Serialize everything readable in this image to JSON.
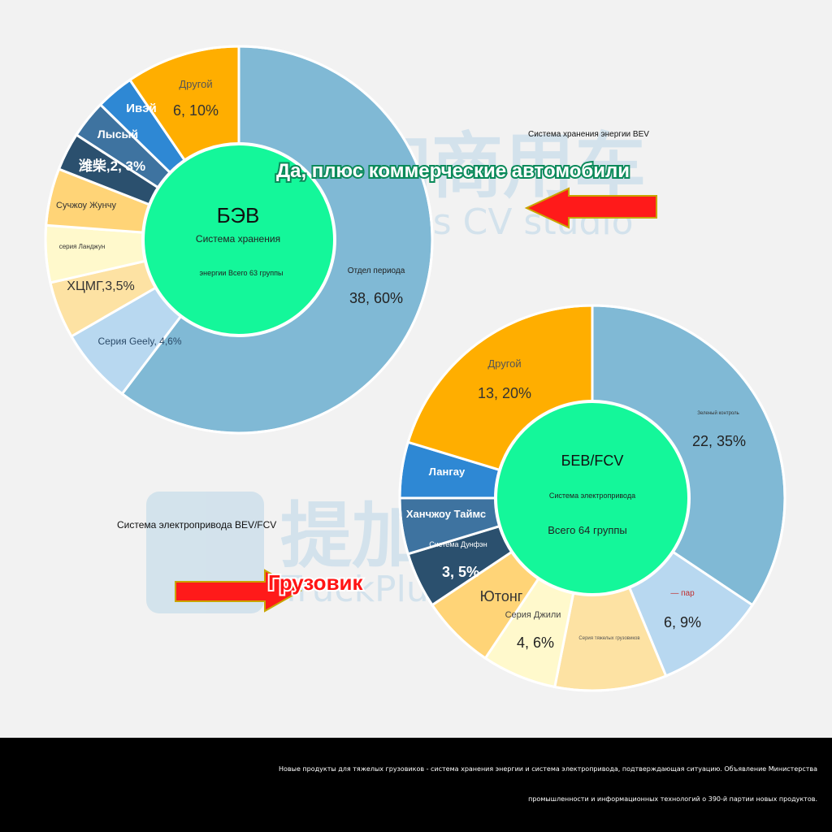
{
  "watermark": {
    "cn_text": "提加商用车",
    "en_text": "TruckPlus CV studio"
  },
  "annotations": {
    "top_caption": "Система хранения энергии BEV",
    "top_banner": "Да, плюс коммерческие автомобили",
    "bottom_caption": "Система электропривода BEV/FCV",
    "bottom_banner": "Грузовик"
  },
  "colors": {
    "center": "#14f79a",
    "arrow": "#ff1a1a",
    "banner_green": "#0b8a5a",
    "banner_red": "#ff1414"
  },
  "footer": {
    "line1": "Новые продукты для тяжелых грузовиков - система хранения энергии и система электропривода, подтверждающая ситуацию. Объявление Министерства",
    "line2": "промышленности и информационных технологий о 390-й партии новых продуктов."
  },
  "chart_data": [
    {
      "type": "pie",
      "center_title": "БЭВ",
      "center_sub1": "Система хранения",
      "center_sub2": "энергии Всего 63 группы",
      "slices": [
        {
          "label": "Отдел периода",
          "value_text": "38, 60%",
          "value": 38,
          "color": "#80b9d5"
        },
        {
          "label": "Серия Geely, 4,6%",
          "value_text": "",
          "value": 4,
          "color": "#b8d8f0"
        },
        {
          "label": "ХЦМГ,3,5%",
          "value_text": "",
          "value": 3,
          "color": "#fde2a3"
        },
        {
          "label": "серия Ланджун",
          "value_text": "",
          "value": 3,
          "color": "#fff9cc"
        },
        {
          "label": "Сучжоу Жунчу",
          "value_text": "",
          "value": 3,
          "color": "#ffd477"
        },
        {
          "label": "潍柴,2, 3%",
          "value_text": "",
          "value": 2,
          "color": "#2b506e"
        },
        {
          "label": "Лысый",
          "value_text": "",
          "value": 2,
          "color": "#3e73a0"
        },
        {
          "label": "Ивэй",
          "value_text": "",
          "value": 2,
          "color": "#2e88d4"
        },
        {
          "label": "Другой",
          "value_text": "6, 10%",
          "value": 6,
          "color": "#ffae00"
        }
      ]
    },
    {
      "type": "pie",
      "center_title": "БЕВ/FCV",
      "center_sub1": "Система электропривода",
      "center_sub2": "Всего 64 группы",
      "slices": [
        {
          "label": "Зеленый контроль",
          "value_text": "22, 35%",
          "value": 22,
          "color": "#80b9d5"
        },
        {
          "label": "— пар",
          "value_text": "6, 9%",
          "value": 6,
          "color": "#b8d8f0"
        },
        {
          "label": "Серия тяжелых грузовиков",
          "value_text": "",
          "value": 6,
          "color": "#fde2a3"
        },
        {
          "label": "Серия Джили",
          "value_text": "4, 6%",
          "value": 4,
          "color": "#fff9cc"
        },
        {
          "label": "Ютонг",
          "value_text": "",
          "value": 4,
          "color": "#ffd477"
        },
        {
          "label": "Система Дунфэн",
          "value_text": "3, 5%",
          "value": 3,
          "color": "#2b506e"
        },
        {
          "label": "Ханчжоу Таймс",
          "value_text": "",
          "value": 3,
          "color": "#3e73a0"
        },
        {
          "label": "Лангау",
          "value_text": "",
          "value": 3,
          "color": "#2e88d4"
        },
        {
          "label": "Другой",
          "value_text": "13, 20%",
          "value": 13,
          "color": "#ffae00"
        }
      ]
    }
  ]
}
